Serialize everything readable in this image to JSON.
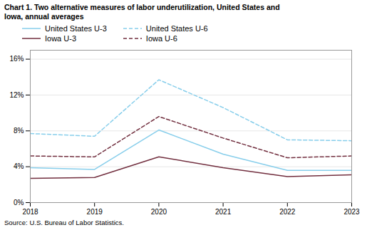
{
  "chart_data": {
    "type": "line",
    "title": "Chart 1. Two alternative measures of labor underutilization, United States and\nIowa, annual averages",
    "source": "Source: U.S. Bureau of Labor Statistics.",
    "x": [
      2018,
      2019,
      2020,
      2021,
      2022,
      2023
    ],
    "xlim": [
      2018,
      2023
    ],
    "xticks": [
      2018,
      2019,
      2020,
      2021,
      2022,
      2023
    ],
    "series": [
      {
        "name": "United States U-3",
        "color": "#87CEEB",
        "line_style": "solid",
        "values": [
          3.9,
          3.7,
          8.1,
          5.4,
          3.6,
          3.6
        ]
      },
      {
        "name": "United States U-6",
        "color": "#87CEEB",
        "line_style": "dashed",
        "values": [
          7.7,
          7.4,
          13.7,
          10.6,
          7.0,
          6.9
        ]
      },
      {
        "name": "Iowa U-3",
        "color": "#722F3F",
        "line_style": "solid",
        "values": [
          2.7,
          2.8,
          5.1,
          3.9,
          2.9,
          3.1
        ]
      },
      {
        "name": "Iowa U-6",
        "color": "#722F3F",
        "line_style": "dashed",
        "values": [
          5.2,
          5.1,
          9.6,
          7.2,
          5.0,
          5.2
        ]
      }
    ],
    "ylim": [
      0,
      17
    ],
    "yticks": [
      {
        "value": 0,
        "label": "0%"
      },
      {
        "value": 4,
        "label": "4%"
      },
      {
        "value": 8,
        "label": "8%"
      },
      {
        "value": 12,
        "label": "12%"
      },
      {
        "value": 16,
        "label": "16%"
      }
    ],
    "grid": "y",
    "legend": "top"
  }
}
